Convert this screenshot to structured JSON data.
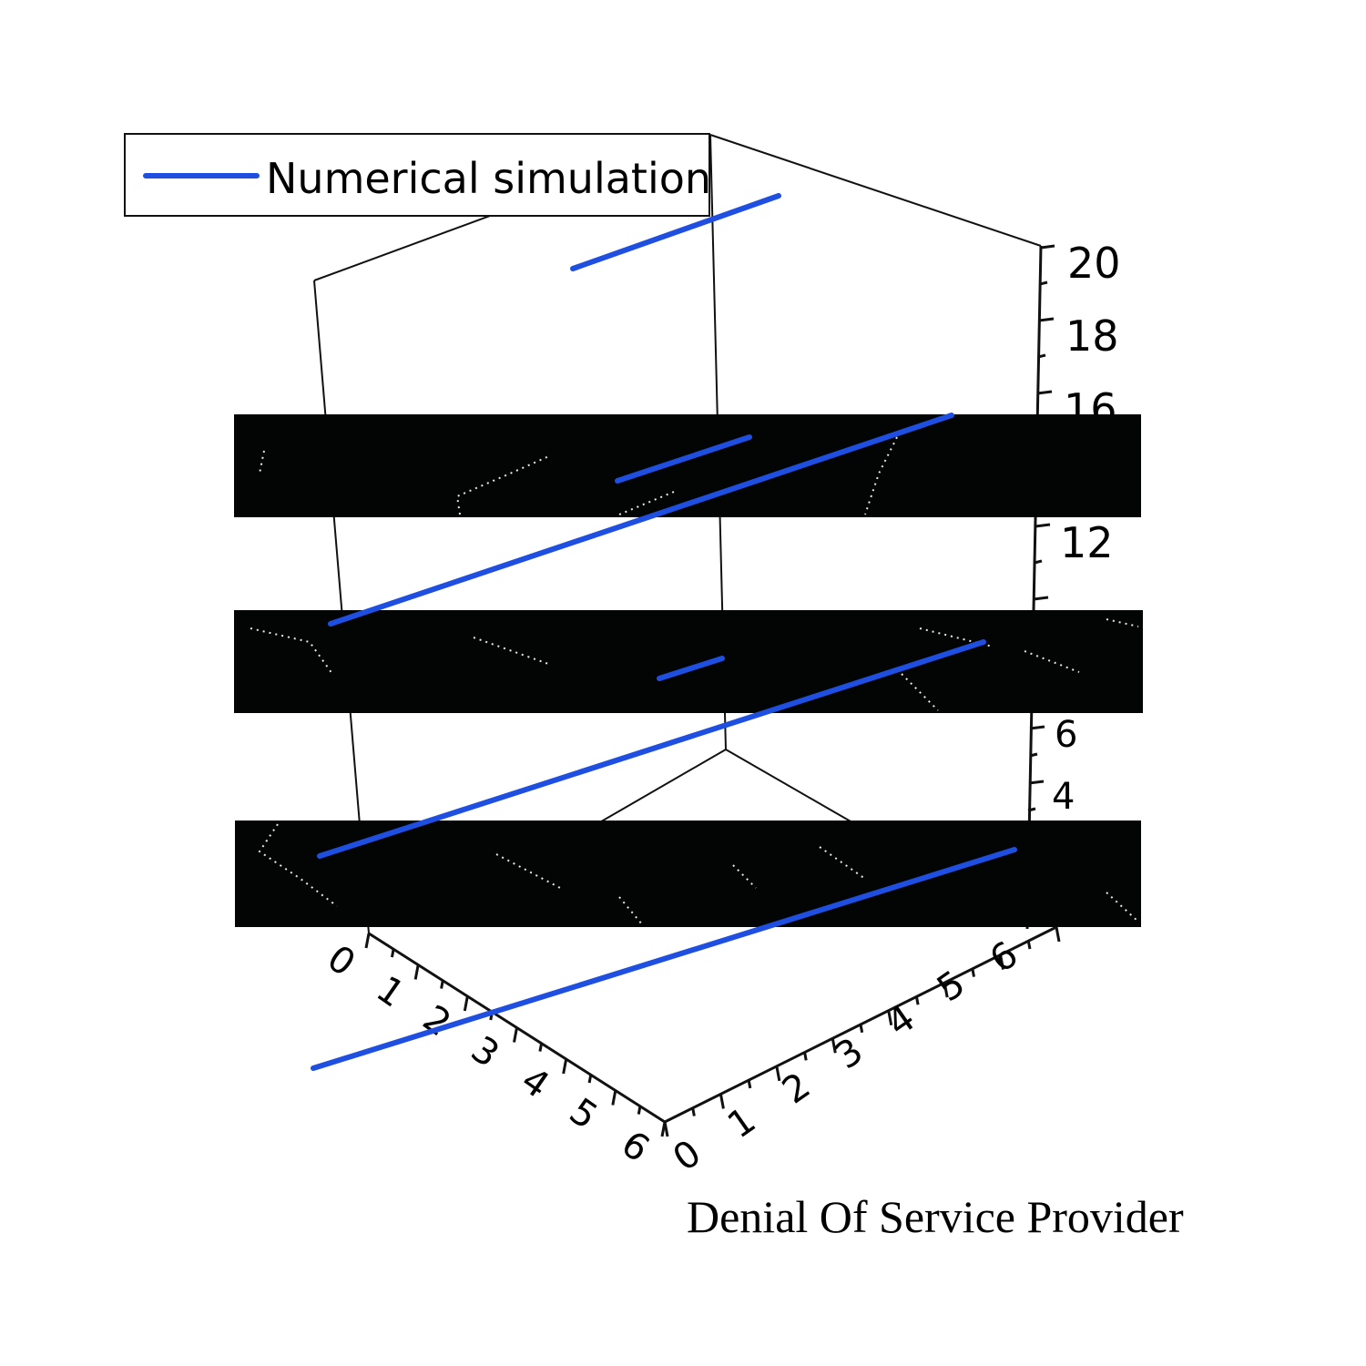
{
  "chart_data": {
    "type": "line",
    "legend": {
      "entries": [
        "Numerical simulation"
      ],
      "placement": "top-left"
    },
    "series": [
      {
        "name": "Numerical simulation",
        "color": "#1f4fe0"
      }
    ],
    "axis_labels": {
      "bottom_right": "Denial Of Service Provider"
    },
    "x_ticks": [
      "0",
      "1",
      "2",
      "3",
      "4",
      "5",
      "6"
    ],
    "y_ticks": [
      "0",
      "1",
      "2",
      "3",
      "4",
      "5",
      "6"
    ],
    "z_ticks": [
      "4",
      "6",
      "12",
      "16",
      "18",
      "20"
    ],
    "z_range": [
      2,
      20
    ],
    "occluding_bands": 3
  }
}
